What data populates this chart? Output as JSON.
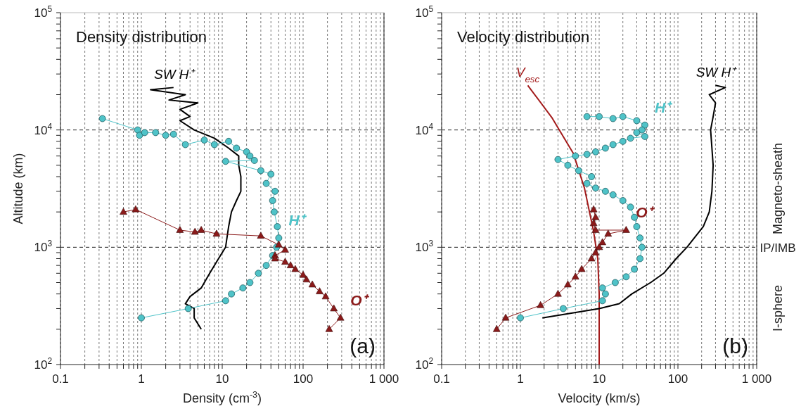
{
  "chart_data": [
    {
      "type": "line",
      "title": "Density distribution",
      "xlabel": "Density (cm$^{-3}$)",
      "ylabel": "Altitude (km)",
      "log": "xy",
      "grid": "x",
      "xlim": [
        0.1,
        1000
      ],
      "ylim": [
        100,
        100000
      ],
      "xticks": [
        0.1,
        {
          "value": 0.2,
          "label": null
        },
        {
          "value": 0.3,
          "label": null
        },
        {
          "value": 0.4,
          "label": null
        },
        {
          "value": 0.5,
          "label": null
        },
        {
          "value": 0.6,
          "label": null
        },
        {
          "value": 0.7,
          "label": null
        },
        {
          "value": 0.8,
          "label": null
        },
        {
          "value": 0.9,
          "label": null
        },
        1,
        {
          "value": 2,
          "label": null
        },
        {
          "value": 3,
          "label": null
        },
        {
          "value": 4,
          "label": null
        },
        {
          "value": 5,
          "label": null
        },
        {
          "value": 6,
          "label": null
        },
        {
          "value": 7,
          "label": null
        },
        {
          "value": 8,
          "label": null
        },
        {
          "value": 9,
          "label": null
        },
        10,
        {
          "value": 20,
          "label": null
        },
        {
          "value": 30,
          "label": null
        },
        {
          "value": 40,
          "label": null
        },
        {
          "value": 50,
          "label": null
        },
        {
          "value": 60,
          "label": null
        },
        {
          "value": 70,
          "label": null
        },
        {
          "value": 80,
          "label": null
        },
        {
          "value": 90,
          "label": null
        },
        100,
        {
          "value": 200,
          "label": null
        },
        {
          "value": 300,
          "label": null
        },
        {
          "value": 400,
          "label": null
        },
        {
          "value": 500,
          "label": null
        },
        {
          "value": 600,
          "label": null
        },
        {
          "value": 700,
          "label": null
        },
        {
          "value": 800,
          "label": null
        },
        {
          "value": 900,
          "label": null
        },
        {
          "value": 1000,
          "label": "1 000"
        }
      ],
      "yticks": [
        {
          "value": 100,
          "label": "10$^{2}$"
        },
        {
          "value": 200,
          "label": null
        },
        {
          "value": 300,
          "label": null
        },
        {
          "value": 400,
          "label": null
        },
        {
          "value": 500,
          "label": null
        },
        {
          "value": 600,
          "label": null
        },
        {
          "value": 700,
          "label": null
        },
        {
          "value": 800,
          "label": null
        },
        {
          "value": 900,
          "label": null
        },
        {
          "value": 1000,
          "label": "10$^{3}$"
        },
        {
          "value": 2000,
          "label": null
        },
        {
          "value": 3000,
          "label": null
        },
        {
          "value": 4000,
          "label": null
        },
        {
          "value": 5000,
          "label": null
        },
        {
          "value": 6000,
          "label": null
        },
        {
          "value": 7000,
          "label": null
        },
        {
          "value": 8000,
          "label": null
        },
        {
          "value": 9000,
          "label": null
        },
        {
          "value": 10000,
          "label": "10$^{4}$"
        },
        {
          "value": 20000,
          "label": null
        },
        {
          "value": 30000,
          "label": null
        },
        {
          "value": 40000,
          "label": null
        },
        {
          "value": 50000,
          "label": null
        },
        {
          "value": 60000,
          "label": null
        },
        {
          "value": 70000,
          "label": null
        },
        {
          "value": 80000,
          "label": null
        },
        {
          "value": 90000,
          "label": null
        },
        {
          "value": 100000,
          "label": "10$^{5}$"
        }
      ],
      "ref_lines": [
        {
          "axis": "y",
          "value": 1000,
          "line_style": "dashed"
        },
        {
          "axis": "y",
          "value": 10000,
          "line_style": "dashed"
        }
      ],
      "annotations": [
        "(a)"
      ],
      "series": [
        {
          "name": "SW H⁺",
          "marker": "none",
          "color": "#000000",
          "x": [
            2.5,
            1.3,
            3.5,
            2.2,
            5,
            3,
            4,
            3,
            4.5,
            8,
            12,
            16,
            16,
            17,
            17,
            15,
            13,
            12,
            11,
            9,
            7,
            5.5,
            4,
            3.5,
            4.5,
            4.5,
            5.5
          ],
          "values": [
            23000,
            22000,
            20000,
            18000,
            17000,
            15000,
            13000,
            12000,
            10000,
            8500,
            7000,
            6000,
            5000,
            4000,
            3000,
            2500,
            2000,
            1500,
            1000,
            800,
            600,
            450,
            380,
            330,
            300,
            250,
            200
          ]
        },
        {
          "name": "H⁺",
          "marker": "circle",
          "color": "#4fc3c8",
          "x": [
            0.33,
            0.9,
            0.95,
            1.1,
            1.5,
            2,
            2.5,
            3.5,
            6,
            8,
            12,
            15,
            20,
            22,
            25,
            11,
            30,
            40,
            35,
            45,
            42,
            44,
            48,
            50,
            47,
            42,
            35,
            28,
            22,
            18,
            13,
            11,
            3.8,
            1
          ],
          "values": [
            12500,
            10000,
            9000,
            9500,
            9500,
            9000,
            9200,
            7500,
            8200,
            7500,
            8000,
            7000,
            6500,
            6000,
            5500,
            5400,
            4500,
            4200,
            3500,
            3000,
            2500,
            2000,
            1500,
            1200,
            1000,
            850,
            700,
            600,
            500,
            450,
            400,
            350,
            300,
            250
          ]
        },
        {
          "name": "O⁺",
          "marker": "triangle",
          "color": "#8b1a1a",
          "x": [
            0.6,
            0.85,
            3,
            4.6,
            5.5,
            8.5,
            30,
            50,
            60,
            45,
            45,
            60,
            70,
            80,
            100,
            110,
            130,
            160,
            190,
            240,
            290,
            210
          ],
          "values": [
            2000,
            2100,
            1400,
            1350,
            1400,
            1300,
            1250,
            1050,
            950,
            850,
            800,
            750,
            700,
            650,
            580,
            530,
            480,
            420,
            380,
            300,
            250,
            200
          ]
        }
      ]
    },
    {
      "type": "line",
      "title": "Velocity distribution",
      "xlabel": "Velocity (km/s)",
      "log": "xy",
      "grid": "x",
      "xlim": [
        0.1,
        1000
      ],
      "ylim": [
        100,
        100000
      ],
      "xticks": [
        0.1,
        {
          "value": 0.2,
          "label": null
        },
        {
          "value": 0.3,
          "label": null
        },
        {
          "value": 0.4,
          "label": null
        },
        {
          "value": 0.5,
          "label": null
        },
        {
          "value": 0.6,
          "label": null
        },
        {
          "value": 0.7,
          "label": null
        },
        {
          "value": 0.8,
          "label": null
        },
        {
          "value": 0.9,
          "label": null
        },
        1,
        {
          "value": 2,
          "label": null
        },
        {
          "value": 3,
          "label": null
        },
        {
          "value": 4,
          "label": null
        },
        {
          "value": 5,
          "label": null
        },
        {
          "value": 6,
          "label": null
        },
        {
          "value": 7,
          "label": null
        },
        {
          "value": 8,
          "label": null
        },
        {
          "value": 9,
          "label": null
        },
        10,
        {
          "value": 20,
          "label": null
        },
        {
          "value": 30,
          "label": null
        },
        {
          "value": 40,
          "label": null
        },
        {
          "value": 50,
          "label": null
        },
        {
          "value": 60,
          "label": null
        },
        {
          "value": 70,
          "label": null
        },
        {
          "value": 80,
          "label": null
        },
        {
          "value": 90,
          "label": null
        },
        100,
        {
          "value": 200,
          "label": null
        },
        {
          "value": 300,
          "label": null
        },
        {
          "value": 400,
          "label": null
        },
        {
          "value": 500,
          "label": null
        },
        {
          "value": 600,
          "label": null
        },
        {
          "value": 700,
          "label": null
        },
        {
          "value": 800,
          "label": null
        },
        {
          "value": 900,
          "label": null
        },
        {
          "value": 1000,
          "label": "1 000"
        }
      ],
      "yticks": [
        {
          "value": 100,
          "label": "10$^{2}$"
        },
        {
          "value": 200,
          "label": null
        },
        {
          "value": 300,
          "label": null
        },
        {
          "value": 400,
          "label": null
        },
        {
          "value": 500,
          "label": null
        },
        {
          "value": 600,
          "label": null
        },
        {
          "value": 700,
          "label": null
        },
        {
          "value": 800,
          "label": null
        },
        {
          "value": 900,
          "label": null
        },
        {
          "value": 1000,
          "label": "10$^{3}$"
        },
        {
          "value": 2000,
          "label": null
        },
        {
          "value": 3000,
          "label": null
        },
        {
          "value": 4000,
          "label": null
        },
        {
          "value": 5000,
          "label": null
        },
        {
          "value": 6000,
          "label": null
        },
        {
          "value": 7000,
          "label": null
        },
        {
          "value": 8000,
          "label": null
        },
        {
          "value": 9000,
          "label": null
        },
        {
          "value": 10000,
          "label": "10$^{4}$"
        },
        {
          "value": 20000,
          "label": null
        },
        {
          "value": 30000,
          "label": null
        },
        {
          "value": 40000,
          "label": null
        },
        {
          "value": 50000,
          "label": null
        },
        {
          "value": 60000,
          "label": null
        },
        {
          "value": 70000,
          "label": null
        },
        {
          "value": 80000,
          "label": null
        },
        {
          "value": 90000,
          "label": null
        },
        {
          "value": 100000,
          "label": "10$^{5}$"
        }
      ],
      "ref_lines": [
        {
          "axis": "y",
          "value": 1000,
          "line_style": "dashed"
        },
        {
          "axis": "y",
          "value": 10000,
          "line_style": "dashed"
        }
      ],
      "annotations": [
        "(b)",
        "Magneto-sheath",
        "IP/IMB",
        "I-sphere"
      ],
      "series": [
        {
          "name": "V$_{esc}$",
          "marker": "none",
          "color": "#a31b1b",
          "x": [
            1.24,
            2.5,
            4.7,
            6.5,
            8.5,
            9.6,
            10,
            10
          ],
          "values": [
            24000,
            12800,
            6300,
            3200,
            1360,
            800,
            400,
            100
          ]
        },
        {
          "name": "SW H⁺",
          "marker": "none",
          "color": "#000000",
          "x": [
            300,
            400,
            250,
            300,
            280,
            260,
            280,
            270,
            250,
            210,
            130,
            95,
            66,
            45,
            26,
            18,
            10,
            1.9
          ],
          "values": [
            24000,
            23000,
            20000,
            17000,
            13000,
            10000,
            5000,
            3000,
            2000,
            1500,
            1000,
            800,
            600,
            500,
            400,
            330,
            300,
            250
          ]
        },
        {
          "name": "H⁺",
          "marker": "circle",
          "color": "#4fc3c8",
          "x": [
            7,
            10,
            15,
            20,
            30,
            38,
            35,
            30,
            38,
            25,
            20,
            15,
            12,
            9,
            7,
            5,
            3,
            4,
            5.5,
            8,
            7,
            9,
            12,
            15,
            20,
            25,
            28,
            30,
            33,
            35,
            33,
            28,
            22,
            16,
            11,
            12,
            11,
            3.5,
            1
          ],
          "values": [
            13000,
            13000,
            12500,
            13000,
            12000,
            11000,
            10000,
            9500,
            8800,
            8500,
            8000,
            7500,
            7000,
            6500,
            6200,
            6000,
            5600,
            5000,
            4500,
            4000,
            3500,
            3200,
            3000,
            2800,
            2500,
            2200,
            1800,
            1500,
            1200,
            1000,
            800,
            650,
            560,
            500,
            450,
            400,
            350,
            300,
            250
          ]
        },
        {
          "name": "O⁺",
          "marker": "triangle",
          "color": "#8b1a1a",
          "x": [
            8.5,
            9,
            8.5,
            9,
            22,
            13,
            11,
            10,
            9,
            8,
            6,
            5,
            4,
            3,
            1.8,
            0.65,
            0.5
          ],
          "values": [
            2100,
            1800,
            1600,
            1400,
            1400,
            1300,
            1100,
            1000,
            900,
            800,
            650,
            560,
            480,
            400,
            320,
            250,
            200
          ]
        }
      ]
    }
  ]
}
